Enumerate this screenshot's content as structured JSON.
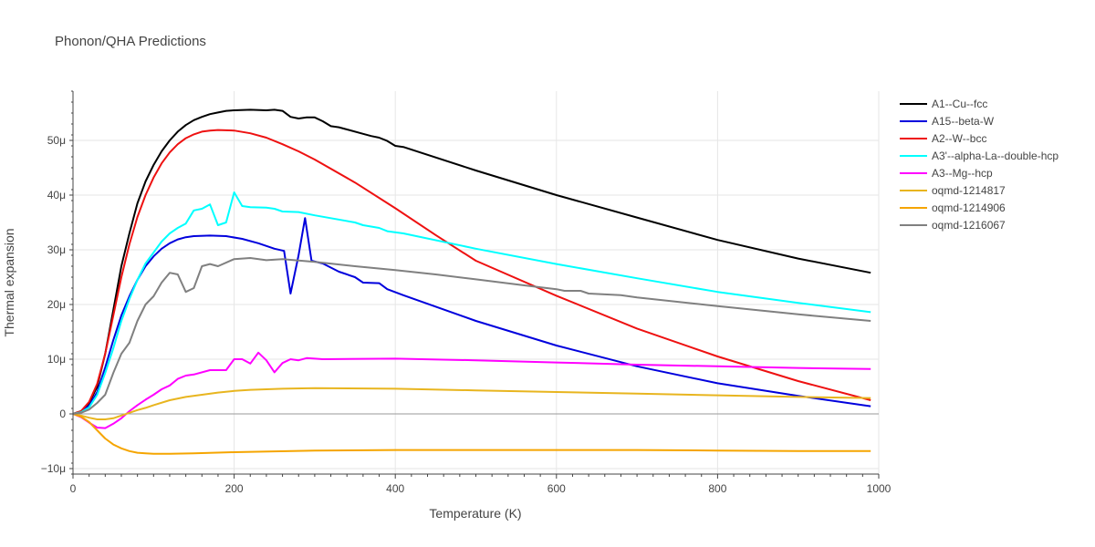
{
  "chart_data": {
    "type": "line",
    "title": "Phonon/QHA Predictions",
    "xlabel": "Temperature (K)",
    "ylabel": "Thermal expansion",
    "xlim": [
      0,
      1000
    ],
    "ylim": [
      -11,
      59
    ],
    "x_ticks": [
      0,
      200,
      400,
      600,
      800,
      1000
    ],
    "y_ticks": [
      -10,
      0,
      10,
      20,
      30,
      40,
      50
    ],
    "y_tick_labels": [
      "−10μ",
      "0",
      "10μ",
      "20μ",
      "30μ",
      "40μ",
      "50μ"
    ],
    "grid": true,
    "legend_position": "right",
    "series": [
      {
        "name": "A1--Cu--fcc",
        "color": "#000000",
        "points": [
          [
            0,
            0
          ],
          [
            10,
            0.5
          ],
          [
            20,
            2
          ],
          [
            30,
            5
          ],
          [
            40,
            11
          ],
          [
            50,
            19
          ],
          [
            60,
            27
          ],
          [
            70,
            33
          ],
          [
            80,
            38.5
          ],
          [
            90,
            42.5
          ],
          [
            100,
            45.5
          ],
          [
            110,
            48
          ],
          [
            120,
            50
          ],
          [
            130,
            51.6
          ],
          [
            140,
            52.8
          ],
          [
            150,
            53.7
          ],
          [
            160,
            54.3
          ],
          [
            170,
            54.8
          ],
          [
            180,
            55.1
          ],
          [
            190,
            55.4
          ],
          [
            200,
            55.5
          ],
          [
            220,
            55.6
          ],
          [
            240,
            55.5
          ],
          [
            250,
            55.6
          ],
          [
            260,
            55.4
          ],
          [
            270,
            54.3
          ],
          [
            280,
            54
          ],
          [
            290,
            54.2
          ],
          [
            300,
            54.2
          ],
          [
            310,
            53.5
          ],
          [
            320,
            52.6
          ],
          [
            330,
            52.4
          ],
          [
            340,
            52
          ],
          [
            360,
            51.2
          ],
          [
            370,
            50.8
          ],
          [
            380,
            50.5
          ],
          [
            390,
            49.9
          ],
          [
            400,
            49
          ],
          [
            410,
            48.8
          ],
          [
            500,
            44.5
          ],
          [
            600,
            40
          ],
          [
            700,
            35.9
          ],
          [
            800,
            31.8
          ],
          [
            900,
            28.4
          ],
          [
            990,
            25.8
          ]
        ]
      },
      {
        "name": "A15--beta-W",
        "color": "#0000dd",
        "points": [
          [
            0,
            0
          ],
          [
            10,
            0.4
          ],
          [
            20,
            1.5
          ],
          [
            30,
            4
          ],
          [
            40,
            8.5
          ],
          [
            50,
            13.5
          ],
          [
            60,
            18
          ],
          [
            70,
            21.5
          ],
          [
            80,
            24.5
          ],
          [
            90,
            27
          ],
          [
            100,
            28.8
          ],
          [
            110,
            30.2
          ],
          [
            120,
            31.2
          ],
          [
            130,
            31.9
          ],
          [
            140,
            32.3
          ],
          [
            150,
            32.5
          ],
          [
            170,
            32.6
          ],
          [
            190,
            32.5
          ],
          [
            210,
            32
          ],
          [
            230,
            31.2
          ],
          [
            250,
            30.2
          ],
          [
            262,
            29.8
          ],
          [
            270,
            22
          ],
          [
            280,
            29
          ],
          [
            288,
            35.8
          ],
          [
            296,
            28
          ],
          [
            310,
            27.5
          ],
          [
            330,
            26
          ],
          [
            350,
            25
          ],
          [
            360,
            24
          ],
          [
            380,
            23.9
          ],
          [
            390,
            22.8
          ],
          [
            410,
            21.7
          ],
          [
            500,
            17
          ],
          [
            600,
            12.5
          ],
          [
            700,
            8.7
          ],
          [
            800,
            5.6
          ],
          [
            900,
            3.3
          ],
          [
            990,
            1.4
          ]
        ]
      },
      {
        "name": "A2--W--bcc",
        "color": "#ee1111",
        "points": [
          [
            0,
            0
          ],
          [
            10,
            0.5
          ],
          [
            20,
            2.2
          ],
          [
            30,
            5.5
          ],
          [
            40,
            11
          ],
          [
            50,
            18
          ],
          [
            60,
            25
          ],
          [
            70,
            31
          ],
          [
            80,
            36
          ],
          [
            90,
            40
          ],
          [
            100,
            43.2
          ],
          [
            110,
            45.8
          ],
          [
            120,
            47.8
          ],
          [
            130,
            49.3
          ],
          [
            140,
            50.4
          ],
          [
            150,
            51.1
          ],
          [
            160,
            51.6
          ],
          [
            170,
            51.8
          ],
          [
            180,
            51.9
          ],
          [
            200,
            51.8
          ],
          [
            220,
            51.3
          ],
          [
            240,
            50.5
          ],
          [
            260,
            49.3
          ],
          [
            280,
            48
          ],
          [
            300,
            46.5
          ],
          [
            350,
            42.3
          ],
          [
            400,
            37.6
          ],
          [
            450,
            32.7
          ],
          [
            500,
            28
          ],
          [
            600,
            21.6
          ],
          [
            700,
            15.6
          ],
          [
            800,
            10.5
          ],
          [
            900,
            6
          ],
          [
            990,
            2.5
          ]
        ]
      },
      {
        "name": "A3'--alpha-La--double-hcp",
        "color": "#00ffff",
        "points": [
          [
            0,
            0
          ],
          [
            10,
            0.3
          ],
          [
            20,
            1.2
          ],
          [
            30,
            3.5
          ],
          [
            40,
            7.5
          ],
          [
            50,
            12
          ],
          [
            60,
            17
          ],
          [
            70,
            21
          ],
          [
            80,
            24.5
          ],
          [
            90,
            27.5
          ],
          [
            100,
            29.5
          ],
          [
            110,
            31.5
          ],
          [
            120,
            33
          ],
          [
            130,
            34
          ],
          [
            140,
            34.8
          ],
          [
            150,
            37.2
          ],
          [
            160,
            37.5
          ],
          [
            170,
            38.3
          ],
          [
            180,
            34.5
          ],
          [
            190,
            35
          ],
          [
            200,
            40.5
          ],
          [
            210,
            38
          ],
          [
            220,
            37.8
          ],
          [
            240,
            37.7
          ],
          [
            250,
            37.5
          ],
          [
            260,
            37
          ],
          [
            280,
            36.9
          ],
          [
            300,
            36.3
          ],
          [
            350,
            35
          ],
          [
            360,
            34.5
          ],
          [
            380,
            34
          ],
          [
            390,
            33.4
          ],
          [
            410,
            33
          ],
          [
            500,
            30.2
          ],
          [
            600,
            27.4
          ],
          [
            700,
            24.8
          ],
          [
            800,
            22.3
          ],
          [
            900,
            20.3
          ],
          [
            990,
            18.6
          ]
        ]
      },
      {
        "name": "A3--Mg--hcp",
        "color": "#ff00ff",
        "points": [
          [
            0,
            0
          ],
          [
            10,
            -0.6
          ],
          [
            20,
            -1.6
          ],
          [
            30,
            -2.5
          ],
          [
            40,
            -2.6
          ],
          [
            50,
            -1.8
          ],
          [
            60,
            -0.8
          ],
          [
            70,
            0.5
          ],
          [
            80,
            1.6
          ],
          [
            90,
            2.6
          ],
          [
            100,
            3.5
          ],
          [
            110,
            4.5
          ],
          [
            120,
            5.2
          ],
          [
            130,
            6.4
          ],
          [
            140,
            7
          ],
          [
            150,
            7.2
          ],
          [
            170,
            8
          ],
          [
            190,
            8
          ],
          [
            200,
            10
          ],
          [
            210,
            10
          ],
          [
            220,
            9.2
          ],
          [
            230,
            11.2
          ],
          [
            240,
            9.8
          ],
          [
            250,
            7.6
          ],
          [
            260,
            9.3
          ],
          [
            270,
            10
          ],
          [
            280,
            9.8
          ],
          [
            290,
            10.2
          ],
          [
            310,
            10
          ],
          [
            400,
            10.1
          ],
          [
            500,
            9.8
          ],
          [
            600,
            9.4
          ],
          [
            700,
            9
          ],
          [
            800,
            8.7
          ],
          [
            900,
            8.4
          ],
          [
            990,
            8.2
          ]
        ]
      },
      {
        "name": "oqmd-1214817",
        "color": "#e8b51f",
        "points": [
          [
            0,
            0
          ],
          [
            10,
            -0.3
          ],
          [
            20,
            -0.7
          ],
          [
            30,
            -1
          ],
          [
            40,
            -1
          ],
          [
            50,
            -0.8
          ],
          [
            60,
            -0.3
          ],
          [
            70,
            0.2
          ],
          [
            80,
            0.7
          ],
          [
            90,
            1.1
          ],
          [
            100,
            1.6
          ],
          [
            120,
            2.5
          ],
          [
            140,
            3.1
          ],
          [
            160,
            3.5
          ],
          [
            180,
            3.9
          ],
          [
            200,
            4.2
          ],
          [
            220,
            4.4
          ],
          [
            260,
            4.6
          ],
          [
            300,
            4.7
          ],
          [
            400,
            4.6
          ],
          [
            500,
            4.3
          ],
          [
            600,
            4
          ],
          [
            700,
            3.7
          ],
          [
            800,
            3.4
          ],
          [
            900,
            3.1
          ],
          [
            990,
            2.9
          ]
        ]
      },
      {
        "name": "oqmd-1214906",
        "color": "#f5a500",
        "points": [
          [
            0,
            0
          ],
          [
            10,
            -0.5
          ],
          [
            20,
            -1.5
          ],
          [
            30,
            -3
          ],
          [
            40,
            -4.5
          ],
          [
            50,
            -5.6
          ],
          [
            60,
            -6.3
          ],
          [
            70,
            -6.8
          ],
          [
            80,
            -7.1
          ],
          [
            90,
            -7.2
          ],
          [
            100,
            -7.3
          ],
          [
            120,
            -7.3
          ],
          [
            150,
            -7.2
          ],
          [
            200,
            -7
          ],
          [
            300,
            -6.7
          ],
          [
            400,
            -6.6
          ],
          [
            500,
            -6.6
          ],
          [
            600,
            -6.6
          ],
          [
            700,
            -6.6
          ],
          [
            800,
            -6.7
          ],
          [
            900,
            -6.8
          ],
          [
            990,
            -6.8
          ]
        ]
      },
      {
        "name": "oqmd-1216067",
        "color": "#808080",
        "points": [
          [
            0,
            0
          ],
          [
            10,
            0.2
          ],
          [
            20,
            0.8
          ],
          [
            30,
            2
          ],
          [
            40,
            3.5
          ],
          [
            50,
            7.5
          ],
          [
            60,
            11
          ],
          [
            70,
            13
          ],
          [
            80,
            17
          ],
          [
            90,
            20
          ],
          [
            100,
            21.5
          ],
          [
            110,
            24
          ],
          [
            120,
            25.8
          ],
          [
            130,
            25.5
          ],
          [
            140,
            22.3
          ],
          [
            150,
            23
          ],
          [
            160,
            27
          ],
          [
            170,
            27.4
          ],
          [
            180,
            27
          ],
          [
            200,
            28.3
          ],
          [
            220,
            28.5
          ],
          [
            240,
            28.1
          ],
          [
            260,
            28.3
          ],
          [
            300,
            27.8
          ],
          [
            350,
            27
          ],
          [
            400,
            26.3
          ],
          [
            450,
            25.5
          ],
          [
            500,
            24.6
          ],
          [
            560,
            23.5
          ],
          [
            600,
            22.8
          ],
          [
            610,
            22.5
          ],
          [
            630,
            22.5
          ],
          [
            640,
            22
          ],
          [
            680,
            21.7
          ],
          [
            700,
            21.3
          ],
          [
            800,
            19.7
          ],
          [
            900,
            18.2
          ],
          [
            990,
            17
          ]
        ]
      }
    ]
  }
}
